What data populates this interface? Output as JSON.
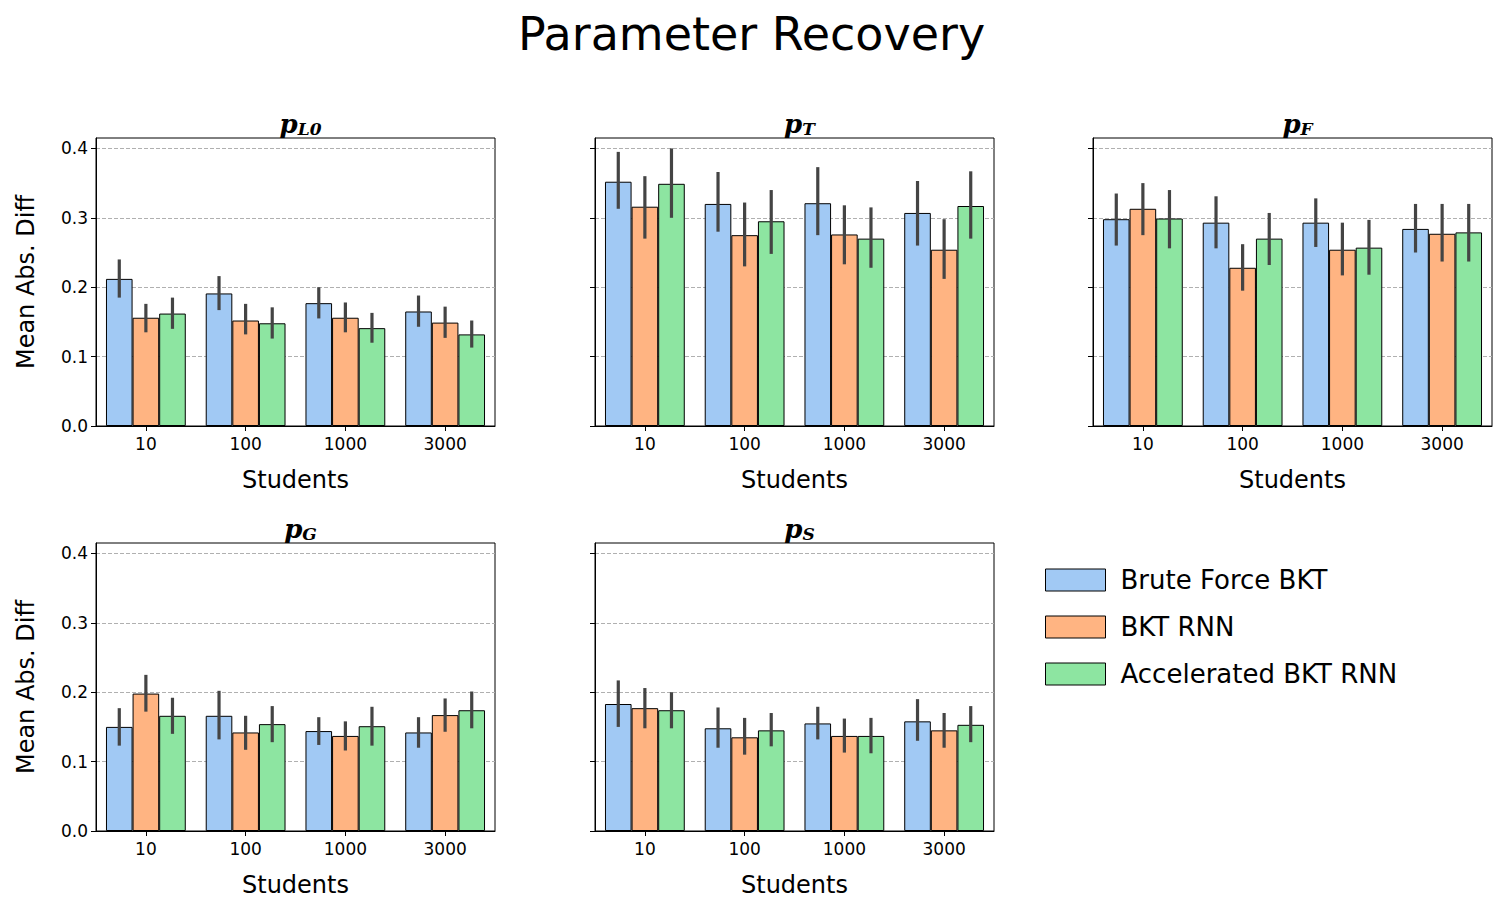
{
  "title": "Parameter Recovery",
  "legend": "lower right",
  "chart_data": [
    {
      "type": "bar",
      "title": "pL0",
      "xlabel": "Students",
      "ylabel": "Mean Abs. Diff",
      "categories": [
        "10",
        "100",
        "1000",
        "3000"
      ],
      "ylim": [
        0,
        0.415
      ],
      "yticks": [
        {
          "value": 0,
          "label": "0.0"
        },
        {
          "value": 0.1,
          "label": "0.1"
        },
        {
          "value": 0.2,
          "label": "0.2"
        },
        {
          "value": 0.3,
          "label": "0.3"
        },
        {
          "value": 0.4,
          "label": "0.4"
        }
      ],
      "grid": true,
      "series": [
        {
          "name": "Brute Force BKT",
          "color": "#a1c9f4",
          "values": [
            0.212,
            0.191,
            0.177,
            0.165
          ],
          "errors": [
            [
              0.185,
              0.24
            ],
            [
              0.167,
              0.216
            ],
            [
              0.155,
              0.2
            ],
            [
              0.143,
              0.188
            ]
          ]
        },
        {
          "name": "BKT RNN",
          "color": "#ffb482",
          "values": [
            0.156,
            0.152,
            0.156,
            0.149
          ],
          "errors": [
            [
              0.135,
              0.176
            ],
            [
              0.132,
              0.176
            ],
            [
              0.135,
              0.178
            ],
            [
              0.127,
              0.172
            ]
          ]
        },
        {
          "name": "Accelerated BKT RNN",
          "color": "#8de5a1",
          "values": [
            0.162,
            0.148,
            0.141,
            0.132
          ],
          "errors": [
            [
              0.14,
              0.185
            ],
            [
              0.126,
              0.171
            ],
            [
              0.12,
              0.163
            ],
            [
              0.113,
              0.152
            ]
          ]
        }
      ]
    },
    {
      "type": "bar",
      "title": "pT",
      "xlabel": "Students",
      "tick_labels": "x",
      "categories": [
        "10",
        "100",
        "1000",
        "3000"
      ],
      "ylim": [
        0,
        0.415
      ],
      "yticks": [
        {
          "value": 0,
          "label": "0.0"
        },
        {
          "value": 0.1,
          "label": "0.1"
        },
        {
          "value": 0.2,
          "label": "0.2"
        },
        {
          "value": 0.3,
          "label": "0.3"
        },
        {
          "value": 0.4,
          "label": "0.4"
        }
      ],
      "grid": true,
      "series": [
        {
          "name": "Brute Force BKT",
          "color": "#a1c9f4",
          "values": [
            0.352,
            0.32,
            0.321,
            0.307
          ],
          "errors": [
            [
              0.313,
              0.395
            ],
            [
              0.28,
              0.366
            ],
            [
              0.275,
              0.373
            ],
            [
              0.26,
              0.353
            ]
          ]
        },
        {
          "name": "BKT RNN",
          "color": "#ffb482",
          "values": [
            0.316,
            0.275,
            0.276,
            0.254
          ],
          "errors": [
            [
              0.27,
              0.36
            ],
            [
              0.23,
              0.322
            ],
            [
              0.233,
              0.318
            ],
            [
              0.212,
              0.298
            ]
          ]
        },
        {
          "name": "Accelerated BKT RNN",
          "color": "#8de5a1",
          "values": [
            0.349,
            0.295,
            0.27,
            0.317
          ],
          "errors": [
            [
              0.3,
              0.4
            ],
            [
              0.248,
              0.34
            ],
            [
              0.228,
              0.315
            ],
            [
              0.27,
              0.367
            ]
          ]
        }
      ]
    },
    {
      "type": "bar",
      "title": "pF",
      "xlabel": "Students",
      "tick_labels": "x",
      "categories": [
        "10",
        "100",
        "1000",
        "3000"
      ],
      "ylim": [
        0,
        0.415
      ],
      "yticks": [
        {
          "value": 0,
          "label": "0.0"
        },
        {
          "value": 0.1,
          "label": "0.1"
        },
        {
          "value": 0.2,
          "label": "0.2"
        },
        {
          "value": 0.3,
          "label": "0.3"
        },
        {
          "value": 0.4,
          "label": "0.4"
        }
      ],
      "grid": true,
      "series": [
        {
          "name": "Brute Force BKT",
          "color": "#a1c9f4",
          "values": [
            0.298,
            0.293,
            0.293,
            0.284
          ],
          "errors": [
            [
              0.26,
              0.335
            ],
            [
              0.256,
              0.331
            ],
            [
              0.258,
              0.328
            ],
            [
              0.25,
              0.32
            ]
          ]
        },
        {
          "name": "BKT RNN",
          "color": "#ffb482",
          "values": [
            0.313,
            0.228,
            0.254,
            0.277
          ],
          "errors": [
            [
              0.275,
              0.35
            ],
            [
              0.195,
              0.262
            ],
            [
              0.217,
              0.293
            ],
            [
              0.237,
              0.32
            ]
          ]
        },
        {
          "name": "Accelerated BKT RNN",
          "color": "#8de5a1",
          "values": [
            0.299,
            0.27,
            0.257,
            0.279
          ],
          "errors": [
            [
              0.256,
              0.34
            ],
            [
              0.232,
              0.307
            ],
            [
              0.218,
              0.297
            ],
            [
              0.237,
              0.32
            ]
          ]
        }
      ]
    },
    {
      "type": "bar",
      "title": "pG",
      "xlabel": "Students",
      "ylabel": "Mean Abs. Diff",
      "categories": [
        "10",
        "100",
        "1000",
        "3000"
      ],
      "ylim": [
        0,
        0.415
      ],
      "yticks": [
        {
          "value": 0,
          "label": "0.0"
        },
        {
          "value": 0.1,
          "label": "0.1"
        },
        {
          "value": 0.2,
          "label": "0.2"
        },
        {
          "value": 0.3,
          "label": "0.3"
        },
        {
          "value": 0.4,
          "label": "0.4"
        }
      ],
      "grid": true,
      "series": [
        {
          "name": "Brute Force BKT",
          "color": "#a1c9f4",
          "values": [
            0.15,
            0.166,
            0.144,
            0.142
          ],
          "errors": [
            [
              0.123,
              0.177
            ],
            [
              0.132,
              0.202
            ],
            [
              0.124,
              0.164
            ],
            [
              0.12,
              0.164
            ]
          ]
        },
        {
          "name": "BKT RNN",
          "color": "#ffb482",
          "values": [
            0.198,
            0.142,
            0.137,
            0.167
          ],
          "errors": [
            [
              0.172,
              0.225
            ],
            [
              0.117,
              0.166
            ],
            [
              0.116,
              0.158
            ],
            [
              0.143,
              0.191
            ]
          ]
        },
        {
          "name": "Accelerated BKT RNN",
          "color": "#8de5a1",
          "values": [
            0.166,
            0.154,
            0.151,
            0.174
          ],
          "errors": [
            [
              0.14,
              0.192
            ],
            [
              0.128,
              0.18
            ],
            [
              0.123,
              0.179
            ],
            [
              0.148,
              0.201
            ]
          ]
        }
      ]
    },
    {
      "type": "bar",
      "title": "pS",
      "xlabel": "Students",
      "tick_labels": "x",
      "categories": [
        "10",
        "100",
        "1000",
        "3000"
      ],
      "ylim": [
        0,
        0.415
      ],
      "yticks": [
        {
          "value": 0,
          "label": "0.0"
        },
        {
          "value": 0.1,
          "label": "0.1"
        },
        {
          "value": 0.2,
          "label": "0.2"
        },
        {
          "value": 0.3,
          "label": "0.3"
        },
        {
          "value": 0.4,
          "label": "0.4"
        }
      ],
      "grid": true,
      "series": [
        {
          "name": "Brute Force BKT",
          "color": "#a1c9f4",
          "values": [
            0.183,
            0.148,
            0.155,
            0.158
          ],
          "errors": [
            [
              0.15,
              0.217
            ],
            [
              0.12,
              0.178
            ],
            [
              0.132,
              0.179
            ],
            [
              0.13,
              0.19
            ]
          ]
        },
        {
          "name": "BKT RNN",
          "color": "#ffb482",
          "values": [
            0.177,
            0.135,
            0.137,
            0.145
          ],
          "errors": [
            [
              0.148,
              0.206
            ],
            [
              0.11,
              0.163
            ],
            [
              0.113,
              0.162
            ],
            [
              0.12,
              0.17
            ]
          ]
        },
        {
          "name": "Accelerated BKT RNN",
          "color": "#8de5a1",
          "values": [
            0.174,
            0.145,
            0.137,
            0.153
          ],
          "errors": [
            [
              0.148,
              0.2
            ],
            [
              0.122,
              0.17
            ],
            [
              0.112,
              0.163
            ],
            [
              0.128,
              0.18
            ]
          ]
        }
      ]
    }
  ]
}
